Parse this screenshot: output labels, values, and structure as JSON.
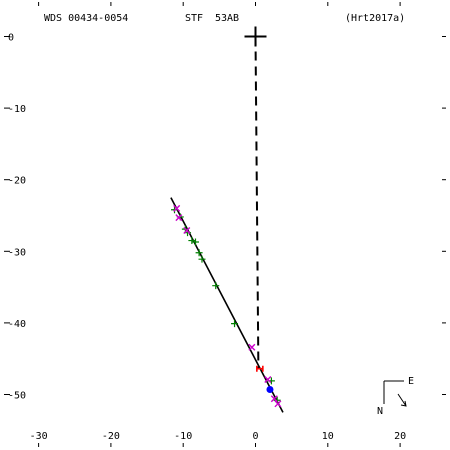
{
  "header": {
    "wds_id": "WDS 00434-0054",
    "discoverer": "STF",
    "pair": "53AB",
    "reference": "(Hrt2017a)"
  },
  "compass": {
    "east_label": "E",
    "north_label": "N"
  },
  "colors": {
    "axes": "#000000",
    "orbit": "#000000",
    "obs_plus": "#008000",
    "obs_x": "#cc00cc",
    "node": "#ff0000",
    "current": "#0000ff"
  },
  "chart_data": {
    "type": "scatter",
    "title": "",
    "xlabel": "",
    "ylabel": "",
    "xlim": [
      -33,
      27
    ],
    "ylim": [
      -55,
      4
    ],
    "x_ticks": [
      -30,
      -20,
      -10,
      0,
      10,
      20
    ],
    "x_tick_labels": [
      "-30",
      "-20",
      "-10",
      "0",
      "10",
      "20"
    ],
    "y_ticks": [
      0,
      -10,
      -20,
      -30,
      -40,
      -50
    ],
    "y_tick_labels": [
      "0",
      "-10",
      "-20",
      "-30",
      "-40",
      "-50"
    ],
    "primary": {
      "x": 0,
      "y": 0
    },
    "orbit_line": {
      "x": [
        -11.7,
        3.8
      ],
      "y": [
        -22.5,
        -52.5
      ]
    },
    "line_of_nodes": {
      "x": [
        0,
        0.4
      ],
      "y": [
        0,
        -46.5
      ]
    },
    "node_point": {
      "x": 0.6,
      "y": -46.4
    },
    "current_position": {
      "x": 2.0,
      "y": -49.3
    },
    "series": [
      {
        "marker": "plus",
        "x": [
          -11.2,
          -10.4,
          -9.7,
          -9.4,
          -8.8,
          -8.3,
          -7.8,
          -7.4,
          -5.5,
          -2.9,
          2.2,
          3.0
        ],
        "y": [
          -24.2,
          -25.2,
          -26.9,
          -27.4,
          -28.5,
          -28.7,
          -30.2,
          -31.1,
          -34.8,
          -40.1,
          -48.1,
          -50.8
        ]
      },
      {
        "marker": "x",
        "x": [
          -10.9,
          -10.6,
          -9.5,
          -0.5,
          1.7,
          2.6,
          3.1
        ],
        "y": [
          -24.0,
          -25.3,
          -27.1,
          -43.4,
          -47.9,
          -50.6,
          -51.3
        ]
      }
    ]
  }
}
